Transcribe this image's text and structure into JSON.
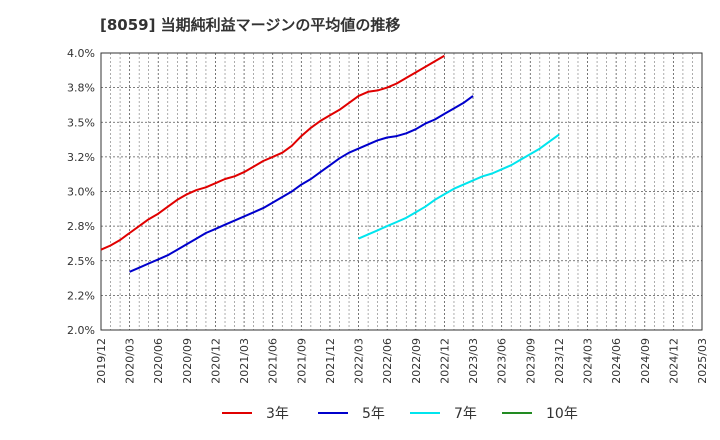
{
  "chart_data": {
    "type": "line",
    "title": "[8059]  当期純利益マージンの平均値の推移",
    "xlabel": "",
    "ylabel": "",
    "ylim": [
      2.0,
      4.0
    ],
    "y_ticks": [
      "4.0%",
      "3.8%",
      "3.5%",
      "3.2%",
      "3.0%",
      "2.8%",
      "2.5%",
      "2.2%",
      "2.0%"
    ],
    "x_ticks": [
      "2019/12",
      "2020/03",
      "2020/06",
      "2020/09",
      "2020/12",
      "2021/03",
      "2021/06",
      "2021/09",
      "2021/12",
      "2022/03",
      "2022/06",
      "2022/09",
      "2022/12",
      "2023/03",
      "2023/06",
      "2023/09",
      "2023/12",
      "2024/03",
      "2024/06",
      "2024/09",
      "2024/12",
      "2025/03"
    ],
    "grid": true,
    "legend_position": "bottom",
    "series": [
      {
        "name": "3年",
        "color": "#e00000",
        "start": "2019/12",
        "values": [
          2.58,
          2.61,
          2.65,
          2.7,
          2.75,
          2.8,
          2.84,
          2.89,
          2.94,
          2.98,
          3.01,
          3.03,
          3.06,
          3.09,
          3.11,
          3.14,
          3.18,
          3.22,
          3.25,
          3.28,
          3.33,
          3.4,
          3.46,
          3.51,
          3.55,
          3.59,
          3.64,
          3.69,
          3.72,
          3.73,
          3.75,
          3.78,
          3.82,
          3.86,
          3.9,
          3.94,
          3.98
        ]
      },
      {
        "name": "5年",
        "color": "#0000cc",
        "start": "2020/03",
        "values": [
          2.42,
          2.45,
          2.48,
          2.51,
          2.54,
          2.58,
          2.62,
          2.66,
          2.7,
          2.73,
          2.76,
          2.79,
          2.82,
          2.85,
          2.88,
          2.92,
          2.96,
          3.0,
          3.05,
          3.09,
          3.14,
          3.19,
          3.24,
          3.28,
          3.31,
          3.34,
          3.37,
          3.39,
          3.4,
          3.42,
          3.45,
          3.49,
          3.52,
          3.56,
          3.6,
          3.64,
          3.69
        ]
      },
      {
        "name": "7年",
        "color": "#00e5ee",
        "start": "2022/03",
        "values": [
          2.66,
          2.69,
          2.72,
          2.75,
          2.78,
          2.81,
          2.85,
          2.89,
          2.94,
          2.98,
          3.02,
          3.05,
          3.08,
          3.11,
          3.13,
          3.16,
          3.19,
          3.23,
          3.27,
          3.31,
          3.36,
          3.41
        ]
      },
      {
        "name": "10年",
        "color": "#228b22",
        "start": "2025/03",
        "values": []
      }
    ]
  }
}
